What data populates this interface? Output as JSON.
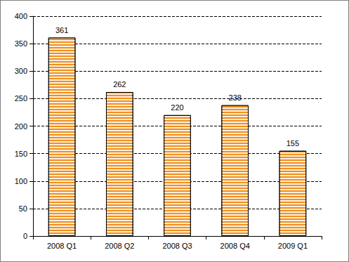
{
  "chart_data": {
    "type": "bar",
    "categories": [
      "2008 Q1",
      "2008 Q2",
      "2008 Q3",
      "2008 Q4",
      "2009 Q1"
    ],
    "values": [
      361,
      262,
      220,
      238,
      155
    ],
    "color": "#f0901e",
    "ylim": [
      0,
      400
    ],
    "yticks": [
      0,
      50,
      100,
      150,
      200,
      250,
      300,
      350,
      400
    ],
    "grid": true,
    "data_labels": true
  }
}
